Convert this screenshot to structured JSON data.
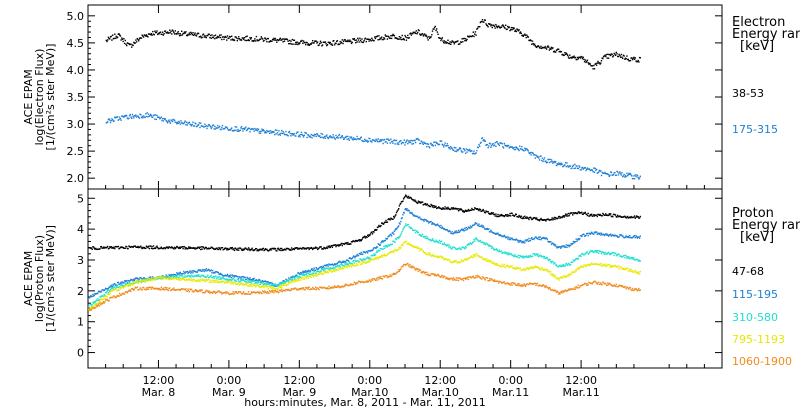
{
  "chart_data": [
    {
      "type": "scatter",
      "panel": "electron",
      "ylabel": [
        "ACE EPAM",
        "log(Electron Flux)",
        "[1/(cm²s ster MeV)]"
      ],
      "ylim": [
        1.8,
        5.2
      ],
      "yticks": [
        "2.0",
        "2.5",
        "3.0",
        "3.5",
        "4.0",
        "4.5",
        "5.0"
      ],
      "ytick_values": [
        2.0,
        2.5,
        3.0,
        3.5,
        4.0,
        4.5,
        5.0
      ],
      "legend_title": [
        "Electron",
        "Energy ranges",
        "[keV]"
      ],
      "series": [
        {
          "name": "38-53",
          "color": "#000000",
          "x": [
            3,
            5,
            7,
            9,
            11,
            12,
            14,
            16,
            20,
            24,
            28,
            32,
            36,
            40,
            44,
            48,
            52,
            54,
            56,
            58,
            59,
            60,
            61,
            62,
            64,
            66,
            67,
            68,
            70,
            72,
            74,
            76,
            78,
            80,
            82,
            84,
            86,
            88,
            90,
            92,
            94
          ],
          "y": [
            4.55,
            4.66,
            4.45,
            4.62,
            4.7,
            4.69,
            4.72,
            4.68,
            4.64,
            4.6,
            4.59,
            4.56,
            4.52,
            4.5,
            4.53,
            4.58,
            4.64,
            4.6,
            4.72,
            4.59,
            4.8,
            4.57,
            4.55,
            4.5,
            4.56,
            4.7,
            4.95,
            4.85,
            4.82,
            4.78,
            4.68,
            4.48,
            4.42,
            4.37,
            4.26,
            4.24,
            4.06,
            4.25,
            4.3,
            4.22,
            4.2
          ]
        },
        {
          "name": "175-315",
          "color": "#1e7fd6",
          "x": [
            3,
            6,
            10,
            14,
            18,
            22,
            26,
            30,
            34,
            38,
            42,
            46,
            50,
            54,
            56,
            58,
            60,
            62,
            64,
            66,
            67,
            68,
            70,
            72,
            74,
            76,
            78,
            80,
            82,
            84,
            86,
            88,
            90,
            92,
            94
          ],
          "y": [
            3.06,
            3.14,
            3.18,
            3.06,
            3.0,
            2.95,
            2.92,
            2.87,
            2.84,
            2.8,
            2.78,
            2.74,
            2.7,
            2.67,
            2.7,
            2.62,
            2.66,
            2.56,
            2.52,
            2.48,
            2.75,
            2.62,
            2.65,
            2.55,
            2.57,
            2.42,
            2.34,
            2.28,
            2.24,
            2.2,
            2.16,
            2.08,
            2.1,
            2.06,
            2.03
          ]
        }
      ]
    },
    {
      "type": "scatter",
      "panel": "proton",
      "ylabel": [
        "ACE EPAM",
        "log(Proton Flux)",
        "[1/(cm²s ster MeV)]"
      ],
      "ylim": [
        -0.5,
        5.3
      ],
      "yticks": [
        "0",
        "1",
        "2",
        "3",
        "4",
        "5"
      ],
      "ytick_values": [
        0,
        1,
        2,
        3,
        4,
        5
      ],
      "legend_title": [
        "Proton",
        "Energy ranges",
        "[keV]"
      ],
      "xlabel": "hours:minutes, Mar.  8, 2011 - Mar. 11, 2011",
      "xlim": [
        0,
        108
      ],
      "xticks": [
        {
          "x": 12,
          "time": "12:00",
          "date": "Mar. 8"
        },
        {
          "x": 24,
          "time": "0:00",
          "date": "Mar. 9"
        },
        {
          "x": 36,
          "time": "12:00",
          "date": "Mar. 9"
        },
        {
          "x": 48,
          "time": "0:00",
          "date": "Mar.10"
        },
        {
          "x": 60,
          "time": "12:00",
          "date": "Mar.10"
        },
        {
          "x": 72,
          "time": "0:00",
          "date": "Mar.11"
        },
        {
          "x": 84,
          "time": "12:00",
          "date": "Mar.11"
        }
      ],
      "series": [
        {
          "name": "47-68",
          "color": "#000000",
          "x": [
            0,
            4,
            8,
            12,
            16,
            20,
            24,
            28,
            32,
            36,
            40,
            44,
            46,
            48,
            50,
            52,
            53,
            54,
            56,
            58,
            60,
            62,
            64,
            66,
            68,
            70,
            72,
            74,
            76,
            78,
            80,
            82,
            84,
            86,
            88,
            90,
            92,
            94
          ],
          "y": [
            3.4,
            3.42,
            3.44,
            3.43,
            3.42,
            3.4,
            3.38,
            3.37,
            3.36,
            3.38,
            3.42,
            3.55,
            3.65,
            3.85,
            4.2,
            4.4,
            4.8,
            5.1,
            4.9,
            4.8,
            4.7,
            4.7,
            4.6,
            4.7,
            4.55,
            4.45,
            4.5,
            4.4,
            4.35,
            4.3,
            4.4,
            4.5,
            4.55,
            4.45,
            4.5,
            4.45,
            4.42,
            4.4
          ]
        },
        {
          "name": "115-195",
          "color": "#1e7fd6",
          "x": [
            0,
            4,
            8,
            12,
            16,
            20,
            24,
            28,
            32,
            36,
            40,
            44,
            46,
            48,
            50,
            52,
            53,
            54,
            56,
            58,
            60,
            62,
            64,
            66,
            68,
            70,
            72,
            74,
            76,
            78,
            80,
            82,
            84,
            86,
            88,
            90,
            92,
            94
          ],
          "y": [
            1.8,
            2.2,
            2.4,
            2.45,
            2.6,
            2.7,
            2.5,
            2.4,
            2.2,
            2.6,
            2.8,
            3.0,
            3.2,
            3.3,
            3.6,
            3.9,
            4.2,
            4.7,
            4.4,
            4.25,
            4.1,
            3.9,
            4.0,
            4.2,
            4.0,
            3.85,
            3.7,
            3.6,
            3.75,
            3.7,
            3.4,
            3.5,
            3.8,
            3.9,
            3.85,
            3.8,
            3.78,
            3.75
          ]
        },
        {
          "name": "310-580",
          "color": "#20e0d0",
          "x": [
            0,
            4,
            8,
            12,
            16,
            20,
            24,
            28,
            32,
            36,
            40,
            44,
            46,
            48,
            50,
            52,
            53,
            54,
            56,
            58,
            60,
            62,
            64,
            66,
            68,
            70,
            72,
            74,
            76,
            78,
            80,
            82,
            84,
            86,
            88,
            90,
            92,
            94
          ],
          "y": [
            1.5,
            2.1,
            2.3,
            2.45,
            2.5,
            2.5,
            2.4,
            2.3,
            2.2,
            2.5,
            2.7,
            2.9,
            3.0,
            3.1,
            3.4,
            3.6,
            3.8,
            4.2,
            3.9,
            3.7,
            3.6,
            3.4,
            3.4,
            3.7,
            3.5,
            3.3,
            3.2,
            3.1,
            3.2,
            3.1,
            2.8,
            2.9,
            3.2,
            3.3,
            3.25,
            3.2,
            3.1,
            3.0
          ]
        },
        {
          "name": "795-1193",
          "color": "#e8e800",
          "x": [
            0,
            4,
            8,
            12,
            16,
            20,
            24,
            28,
            32,
            36,
            40,
            44,
            46,
            48,
            50,
            52,
            53,
            54,
            56,
            58,
            60,
            62,
            64,
            66,
            68,
            70,
            72,
            74,
            76,
            78,
            80,
            82,
            84,
            86,
            88,
            90,
            92,
            94
          ],
          "y": [
            1.4,
            2.0,
            2.3,
            2.45,
            2.4,
            2.35,
            2.3,
            2.2,
            2.1,
            2.4,
            2.6,
            2.8,
            2.9,
            3.0,
            3.15,
            3.3,
            3.4,
            3.6,
            3.4,
            3.2,
            3.1,
            2.95,
            3.0,
            3.2,
            3.0,
            2.85,
            2.8,
            2.7,
            2.8,
            2.7,
            2.4,
            2.55,
            2.8,
            2.9,
            2.85,
            2.8,
            2.7,
            2.6
          ]
        },
        {
          "name": "1060-1900",
          "color": "#f08c1e",
          "x": [
            0,
            4,
            8,
            12,
            16,
            20,
            24,
            28,
            32,
            36,
            40,
            44,
            46,
            48,
            50,
            52,
            53,
            54,
            56,
            58,
            60,
            62,
            64,
            66,
            68,
            70,
            72,
            74,
            76,
            78,
            80,
            82,
            84,
            86,
            88,
            90,
            92,
            94
          ],
          "y": [
            1.4,
            1.8,
            2.1,
            2.1,
            2.05,
            2.0,
            1.95,
            1.95,
            2.0,
            2.1,
            2.1,
            2.2,
            2.3,
            2.35,
            2.45,
            2.55,
            2.7,
            2.9,
            2.7,
            2.55,
            2.5,
            2.4,
            2.4,
            2.5,
            2.4,
            2.3,
            2.25,
            2.2,
            2.25,
            2.15,
            1.95,
            2.05,
            2.2,
            2.3,
            2.25,
            2.2,
            2.1,
            2.05
          ]
        }
      ]
    }
  ]
}
